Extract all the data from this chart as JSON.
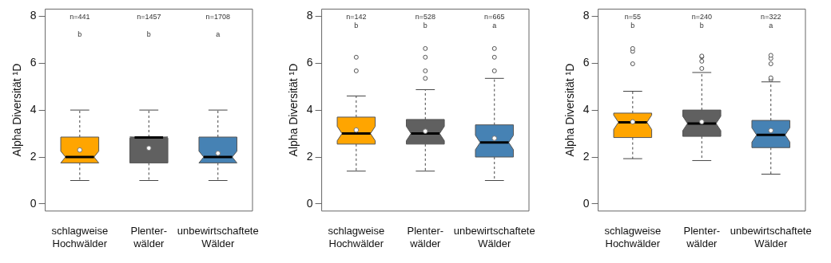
{
  "chart_data": [
    {
      "type": "box",
      "ylabel": "Alpha Diversität ¹D",
      "categories": [
        "schlagweise\nHochwälder",
        "Plenter-\nwälder",
        "unbewirtschaftete\nWälder"
      ],
      "colors": [
        "#ffa500",
        "#606060",
        "#4682b4"
      ],
      "ylim": [
        -0.3,
        8.3
      ],
      "yticks": [
        0,
        2,
        4,
        6,
        8
      ],
      "grid": false,
      "legend": false,
      "boxes": [
        {
          "low": 1,
          "q1": 1.75,
          "median": 2.0,
          "q3": 2.85,
          "high": 4,
          "mean": 2.3
        },
        {
          "low": 1,
          "q1": 1.75,
          "median": 2.83,
          "q3": 2.85,
          "high": 4,
          "mean": 2.38
        },
        {
          "low": 1,
          "q1": 1.75,
          "median": 2.0,
          "q3": 2.85,
          "high": 4,
          "mean": 2.16
        }
      ],
      "annotations": [
        "n=441",
        "n=1457",
        "n=1708",
        "b",
        "b",
        "a"
      ]
    },
    {
      "type": "box",
      "ylabel": "Alpha Diversität ¹D",
      "categories": [
        "schlagweise\nHochwälder",
        "Plenter-\nwälder",
        "unbewirtschaftete\nWälder"
      ],
      "colors": [
        "#ffa500",
        "#606060",
        "#4682b4"
      ],
      "ylim": [
        -0.3,
        8.3
      ],
      "yticks": [
        0,
        2,
        4,
        6,
        8
      ],
      "grid": false,
      "legend": false,
      "boxes": [
        {
          "low": 1.4,
          "q1": 2.55,
          "median": 3.0,
          "q3": 3.7,
          "high": 4.6,
          "mean": 3.15,
          "outliers": [
            5.67,
            6.25
          ]
        },
        {
          "low": 1.4,
          "q1": 2.55,
          "median": 3.0,
          "q3": 3.6,
          "high": 4.87,
          "mean": 3.1,
          "outliers": [
            5.35,
            5.67,
            6.25,
            6.62
          ]
        },
        {
          "low": 1.0,
          "q1": 2.0,
          "median": 2.62,
          "q3": 3.37,
          "high": 5.35,
          "mean": 2.8,
          "outliers": [
            5.67,
            6.25,
            6.62
          ]
        }
      ],
      "annotations": [
        "n=142",
        "n=528",
        "n=665",
        "b",
        "b",
        "a"
      ]
    },
    {
      "type": "box",
      "ylabel": "Alpha Diversität ¹D",
      "categories": [
        "schlagweise\nHochwälder",
        "Plenter-\nwälder",
        "unbewirtschaftete\nWälder"
      ],
      "colors": [
        "#ffa500",
        "#606060",
        "#4682b4"
      ],
      "ylim": [
        -0.3,
        8.3
      ],
      "yticks": [
        0,
        2,
        4,
        6,
        8
      ],
      "grid": false,
      "legend": false,
      "boxes": [
        {
          "low": 1.93,
          "q1": 2.83,
          "median": 3.48,
          "q3": 3.87,
          "high": 4.8,
          "mean": 3.5,
          "outliers": [
            5.97,
            6.5,
            6.62
          ]
        },
        {
          "low": 1.85,
          "q1": 2.88,
          "median": 3.43,
          "q3": 4.0,
          "high": 5.6,
          "mean": 3.5,
          "outliers": [
            5.77,
            6.08,
            6.27,
            6.3
          ]
        },
        {
          "low": 1.27,
          "q1": 2.4,
          "median": 2.94,
          "q3": 3.56,
          "high": 5.2,
          "mean": 3.13,
          "outliers": [
            5.3,
            5.37,
            5.97,
            6.2,
            6.33
          ]
        }
      ],
      "annotations": [
        "n=55",
        "n=240",
        "n=322",
        "b",
        "b",
        "a"
      ]
    }
  ]
}
